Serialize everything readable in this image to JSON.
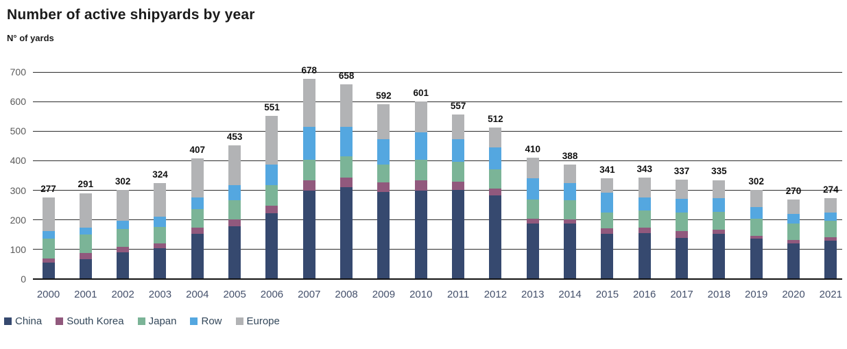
{
  "chart_data": {
    "type": "bar",
    "stacked": true,
    "title": "Number of active shipyards by year",
    "ylabel": "N° of yards",
    "xlabel": "",
    "ylim": [
      0,
      700
    ],
    "yticks": [
      0,
      100,
      200,
      300,
      400,
      500,
      600,
      700
    ],
    "grid": "horizontal",
    "legend_position": "bottom-left",
    "categories": [
      "2000",
      "2001",
      "2002",
      "2003",
      "2004",
      "2005",
      "2006",
      "2007",
      "2008",
      "2009",
      "2010",
      "2011",
      "2012",
      "2013",
      "2014",
      "2015",
      "2016",
      "2017",
      "2018",
      "2019",
      "2020",
      "2021"
    ],
    "totals": [
      277,
      291,
      302,
      324,
      407,
      453,
      551,
      678,
      658,
      592,
      601,
      557,
      512,
      410,
      388,
      341,
      343,
      337,
      335,
      302,
      270,
      274
    ],
    "series": [
      {
        "name": "China",
        "color": "#36496F",
        "values": [
          55,
          67,
          90,
          105,
          152,
          178,
          222,
          300,
          311,
          294,
          299,
          302,
          283,
          187,
          187,
          152,
          156,
          140,
          154,
          136,
          120,
          129
        ]
      },
      {
        "name": "South Korea",
        "color": "#91597D",
        "values": [
          15,
          22,
          18,
          16,
          22,
          23,
          25,
          34,
          31,
          32,
          34,
          27,
          22,
          18,
          15,
          19,
          19,
          22,
          13,
          10,
          13,
          12
        ]
      },
      {
        "name": "Japan",
        "color": "#7BB497",
        "values": [
          67,
          62,
          62,
          56,
          62,
          66,
          71,
          69,
          73,
          62,
          71,
          67,
          67,
          63,
          64,
          54,
          58,
          62,
          61,
          58,
          54,
          57
        ]
      },
      {
        "name": "Row",
        "color": "#54A7E0",
        "values": [
          26,
          24,
          27,
          35,
          40,
          50,
          70,
          111,
          99,
          85,
          93,
          76,
          73,
          72,
          58,
          66,
          42,
          48,
          46,
          40,
          33,
          26
        ]
      },
      {
        "name": "Europe",
        "color": "#B2B3B5",
        "values": [
          114,
          116,
          105,
          112,
          131,
          136,
          163,
          164,
          144,
          119,
          104,
          85,
          67,
          70,
          64,
          50,
          68,
          65,
          61,
          58,
          50,
          50
        ]
      }
    ]
  }
}
